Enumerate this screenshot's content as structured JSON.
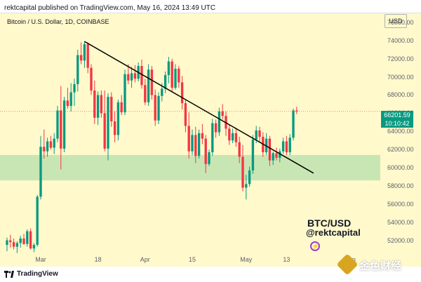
{
  "header": {
    "published_text": "rektcapital published on TradingView.com, May 16, 2024 13:49 UTC"
  },
  "chart": {
    "symbol_text": "Bitcoin / U.S. Dollar, 1D, COINBASE",
    "currency": "USD",
    "current_price": "66201.59",
    "countdown": "10:10:42",
    "watermark_title": "BTC/USD",
    "watermark_handle": "@rektcapital"
  },
  "footer": {
    "brand": "TradingView",
    "partner_logo_text": "金色财经"
  },
  "colors": {
    "up": "#089981",
    "down": "#f23645",
    "support_zone": "#c8e6b4",
    "background": "#fff9cc"
  },
  "icons": {
    "bolt": "bolt-icon",
    "tradingview": "tradingview-logo-icon"
  },
  "chart_data": {
    "type": "candlestick",
    "title": "Bitcoin / U.S. Dollar, 1D, COINBASE",
    "y_ticks": [
      "76000.00",
      "74000.00",
      "72000.00",
      "70000.00",
      "68000.00",
      "66000.00",
      "64000.00",
      "62000.00",
      "60000.00",
      "58000.00",
      "56000.00",
      "54000.00",
      "52000.00"
    ],
    "x_ticks": [
      "Mar",
      "18",
      "Apr",
      "15",
      "May",
      "13",
      "Jun"
    ],
    "ylim": [
      50500,
      77000
    ],
    "support_zone": [
      58600,
      61400
    ],
    "trendline": [
      [
        "2024-03-14",
        73900
      ],
      [
        "2024-05-21",
        59400
      ]
    ],
    "candles": [
      [
        "02-20",
        51500,
        52300,
        50800,
        52000
      ],
      [
        "02-21",
        52000,
        52600,
        51200,
        51800
      ],
      [
        "02-22",
        51800,
        52200,
        51000,
        51300
      ],
      [
        "02-23",
        51300,
        51900,
        50600,
        51700
      ],
      [
        "02-24",
        51700,
        52500,
        51200,
        52200
      ],
      [
        "02-25",
        52200,
        52700,
        51500,
        51600
      ],
      [
        "02-26",
        51600,
        53200,
        51300,
        53000
      ],
      [
        "02-27",
        53000,
        53300,
        51000,
        51100
      ],
      [
        "02-28",
        51100,
        51700,
        50700,
        51500
      ],
      [
        "02-29",
        51500,
        57000,
        51300,
        56800
      ],
      [
        "03-01",
        56800,
        63500,
        56500,
        62300
      ],
      [
        "03-02",
        62300,
        64200,
        61000,
        61800
      ],
      [
        "03-03",
        61800,
        63300,
        61200,
        62900
      ],
      [
        "03-04",
        62900,
        63500,
        62000,
        62200
      ],
      [
        "03-05",
        62200,
        63800,
        61500,
        63200
      ],
      [
        "03-06",
        63200,
        66800,
        62800,
        66300
      ],
      [
        "03-07",
        66300,
        69000,
        59800,
        62100
      ],
      [
        "03-08",
        62100,
        67800,
        61700,
        67400
      ],
      [
        "03-09",
        67400,
        68800,
        66500,
        66800
      ],
      [
        "03-10",
        66800,
        69300,
        66200,
        68300
      ],
      [
        "03-11",
        68300,
        69800,
        66800,
        69200
      ],
      [
        "03-12",
        69200,
        73000,
        68400,
        72400
      ],
      [
        "03-13",
        72400,
        73800,
        71400,
        71800
      ],
      [
        "03-14",
        71800,
        73900,
        71000,
        73600
      ],
      [
        "03-15",
        73600,
        73800,
        70400,
        71000
      ],
      [
        "03-16",
        71000,
        71400,
        68000,
        68500
      ],
      [
        "03-17",
        68500,
        69600,
        64800,
        65500
      ],
      [
        "03-18",
        65500,
        68400,
        64700,
        68000
      ],
      [
        "03-19",
        68000,
        68500,
        65500,
        66000
      ],
      [
        "03-20",
        66000,
        68500,
        61800,
        62100
      ],
      [
        "03-21",
        62100,
        68200,
        60800,
        67800
      ],
      [
        "03-22",
        67800,
        68300,
        64500,
        65100
      ],
      [
        "03-23",
        65100,
        66200,
        62800,
        63600
      ],
      [
        "03-24",
        63600,
        67500,
        63000,
        67200
      ],
      [
        "03-25",
        67200,
        68000,
        65800,
        66100
      ],
      [
        "03-26",
        66100,
        70800,
        65800,
        70300
      ],
      [
        "03-27",
        70300,
        71400,
        69200,
        69600
      ],
      [
        "03-28",
        69600,
        71100,
        68800,
        70400
      ],
      [
        "03-29",
        70400,
        71300,
        69400,
        69800
      ],
      [
        "03-30",
        69800,
        71600,
        69500,
        71200
      ],
      [
        "03-31",
        71200,
        71900,
        68700,
        69100
      ],
      [
        "04-01",
        69100,
        69800,
        66900,
        67200
      ],
      [
        "04-02",
        67200,
        71400,
        66800,
        70800
      ],
      [
        "04-03",
        70800,
        71200,
        67500,
        68000
      ],
      [
        "04-04",
        68000,
        68600,
        64600,
        65200
      ],
      [
        "04-05",
        65200,
        68300,
        64800,
        67900
      ],
      [
        "04-06",
        67900,
        69300,
        67300,
        68700
      ],
      [
        "04-07",
        68700,
        70600,
        68200,
        70200
      ],
      [
        "04-08",
        70200,
        72200,
        69300,
        71700
      ],
      [
        "04-09",
        71700,
        72000,
        68400,
        68800
      ],
      [
        "04-10",
        68800,
        71400,
        68600,
        70900
      ],
      [
        "04-11",
        70900,
        71200,
        68800,
        69400
      ],
      [
        "04-12",
        69400,
        70100,
        66400,
        67100
      ],
      [
        "04-13",
        67100,
        67500,
        63900,
        64600
      ],
      [
        "04-14",
        64600,
        66100,
        61000,
        61800
      ],
      [
        "04-15",
        61800,
        64200,
        61400,
        63600
      ],
      [
        "04-16",
        63600,
        64500,
        60500,
        61300
      ],
      [
        "04-17",
        61300,
        64200,
        61000,
        63800
      ],
      [
        "04-18",
        63800,
        64800,
        62600,
        63200
      ],
      [
        "04-19",
        63200,
        63600,
        59400,
        60400
      ],
      [
        "04-20",
        60400,
        62000,
        60200,
        61700
      ],
      [
        "04-21",
        61700,
        65400,
        61300,
        64900
      ],
      [
        "04-22",
        64900,
        65300,
        63300,
        63900
      ],
      [
        "04-23",
        63900,
        66600,
        63500,
        66200
      ],
      [
        "04-24",
        66200,
        67000,
        65300,
        65700
      ],
      [
        "04-25",
        65700,
        66200,
        63500,
        64300
      ],
      [
        "04-26",
        64300,
        64700,
        62500,
        63000
      ],
      [
        "04-27",
        63000,
        64300,
        62700,
        63800
      ],
      [
        "04-28",
        63800,
        64400,
        62300,
        62800
      ],
      [
        "04-29",
        62800,
        63400,
        60500,
        61200
      ],
      [
        "04-30",
        61200,
        62500,
        57400,
        57800
      ],
      [
        "05-01",
        57800,
        59200,
        56500,
        58200
      ],
      [
        "05-02",
        58200,
        60100,
        57900,
        59700
      ],
      [
        "05-03",
        59700,
        63600,
        59300,
        63100
      ],
      [
        "05-04",
        63100,
        64600,
        62700,
        64100
      ],
      [
        "05-05",
        64100,
        64500,
        62900,
        63400
      ],
      [
        "05-06",
        63400,
        63900,
        61200,
        61700
      ],
      [
        "05-07",
        61700,
        63800,
        61400,
        63200
      ],
      [
        "05-08",
        63200,
        63500,
        60200,
        60800
      ],
      [
        "05-09",
        60800,
        61800,
        60300,
        61600
      ],
      [
        "05-10",
        61600,
        62200,
        60800,
        61100
      ],
      [
        "05-11",
        61100,
        62100,
        60600,
        61800
      ],
      [
        "05-12",
        61800,
        63300,
        61500,
        62900
      ],
      [
        "05-13",
        62900,
        63500,
        61400,
        61700
      ],
      [
        "05-14",
        61700,
        63700,
        61400,
        63300
      ],
      [
        "05-15",
        63300,
        66500,
        63000,
        66300
      ],
      [
        "05-16",
        66300,
        66700,
        65900,
        66200
      ]
    ]
  }
}
